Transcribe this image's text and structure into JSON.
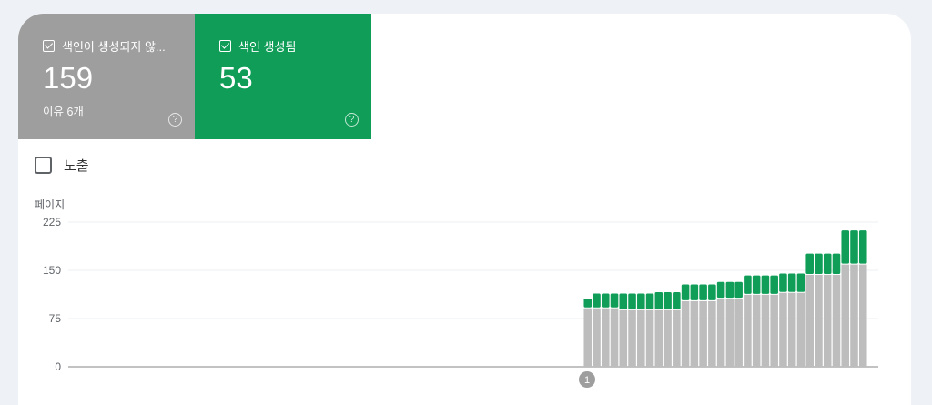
{
  "tiles": [
    {
      "label": "색인이 생성되지 않...",
      "value": "159",
      "sub": "이유 6개",
      "color": "#9e9e9e",
      "checked": true,
      "help_icon": "help-circle-icon"
    },
    {
      "label": "색인 생성됨",
      "value": "53",
      "color": "#0f9d58",
      "checked": true,
      "help_icon": "help-circle-icon"
    }
  ],
  "impressions_toggle": {
    "label": "노출",
    "checked": false
  },
  "chart_data": {
    "type": "bar",
    "stacked": true,
    "ylabel": "페이지",
    "ylim": [
      0,
      225
    ],
    "yticks": [
      "0",
      "75",
      "150",
      "225"
    ],
    "grid": true,
    "annotation": "1",
    "series": [
      {
        "color": "#bdbdbd",
        "values": [
          91,
          91,
          91,
          91,
          88,
          88,
          88,
          88,
          88,
          88,
          88,
          102,
          102,
          102,
          102,
          106,
          106,
          106,
          112,
          112,
          112,
          112,
          115,
          115,
          115,
          143,
          143,
          143,
          143,
          159,
          159,
          159
        ]
      },
      {
        "color": "#0f9d58",
        "values": [
          15,
          23,
          23,
          23,
          26,
          26,
          26,
          26,
          28,
          28,
          28,
          26,
          26,
          26,
          26,
          26,
          26,
          26,
          30,
          30,
          30,
          30,
          30,
          30,
          30,
          33,
          33,
          33,
          33,
          53,
          53,
          53
        ]
      }
    ]
  }
}
